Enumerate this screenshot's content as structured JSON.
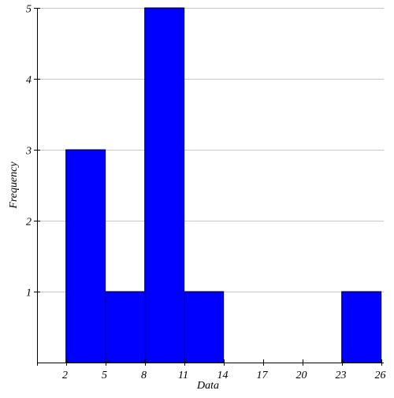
{
  "chart_data": {
    "type": "bar",
    "subtype": "histogram",
    "title": "",
    "xlabel": "Data",
    "ylabel": "Frequency",
    "bins": [
      {
        "start": 2,
        "end": 5,
        "value": 3
      },
      {
        "start": 5,
        "end": 8,
        "value": 1
      },
      {
        "start": 8,
        "end": 11,
        "value": 5
      },
      {
        "start": 11,
        "end": 14,
        "value": 1
      },
      {
        "start": 14,
        "end": 17,
        "value": 0
      },
      {
        "start": 17,
        "end": 20,
        "value": 0
      },
      {
        "start": 20,
        "end": 23,
        "value": 0
      },
      {
        "start": 23,
        "end": 26,
        "value": 1
      }
    ],
    "x_ticks": [
      2,
      5,
      8,
      11,
      14,
      17,
      20,
      23,
      26
    ],
    "y_ticks": [
      1,
      2,
      3,
      4,
      5
    ],
    "xlim": [
      -0.2,
      26.2
    ],
    "ylim": [
      0,
      5
    ],
    "grid": {
      "horizontal": true,
      "vertical": false
    },
    "legend": "none",
    "colors": {
      "bar_fill": "#0000ff",
      "bar_stroke": "#000000",
      "grid": "#c8c8c8",
      "axis": "#000000"
    }
  }
}
